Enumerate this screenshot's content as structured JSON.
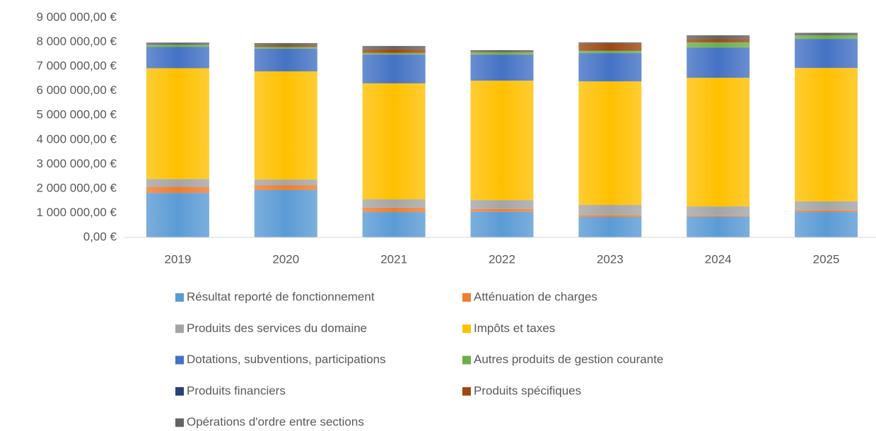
{
  "chart_data": {
    "type": "stacked_bar",
    "categories": [
      "2019",
      "2020",
      "2021",
      "2022",
      "2023",
      "2024",
      "2025"
    ],
    "series": [
      {
        "name": "Résultat reporté de fonctionnement",
        "color": "#5b9bd5",
        "values": [
          1820000,
          1940000,
          1040000,
          1050000,
          840000,
          840000,
          1040000
        ]
      },
      {
        "name": "Atténuation de charges",
        "color": "#ed7d31",
        "values": [
          250000,
          200000,
          180000,
          110000,
          80000,
          30000,
          60000
        ]
      },
      {
        "name": "Produits des services du domaine",
        "color": "#a5a5a5",
        "values": [
          320000,
          230000,
          340000,
          370000,
          410000,
          400000,
          380000
        ]
      },
      {
        "name": "Impôts et taxes",
        "color": "#ffc000",
        "values": [
          4540000,
          4430000,
          4750000,
          4890000,
          5060000,
          5270000,
          5460000
        ]
      },
      {
        "name": "Dotations, subventions, participations",
        "color": "#4472c4",
        "values": [
          870000,
          930000,
          1180000,
          1070000,
          1160000,
          1240000,
          1190000
        ]
      },
      {
        "name": "Autres produits de gestion courante",
        "color": "#70ad47",
        "values": [
          90000,
          70000,
          60000,
          90000,
          90000,
          210000,
          150000
        ]
      },
      {
        "name": "Produits financiers",
        "color": "#264478",
        "values": [
          10000,
          10000,
          10000,
          10000,
          10000,
          10000,
          10000
        ]
      },
      {
        "name": "Produits spécifiques",
        "color": "#9e480e",
        "values": [
          0,
          60000,
          140000,
          20000,
          280000,
          130000,
          0
        ]
      },
      {
        "name": "Opérations d'ordre entre sections",
        "color": "#636363",
        "values": [
          80000,
          90000,
          140000,
          60000,
          60000,
          150000,
          90000
        ]
      }
    ],
    "ylim": [
      0,
      9000000
    ],
    "yticks": [
      {
        "value": 0,
        "label": "0,00 €"
      },
      {
        "value": 1000000,
        "label": "1 000 000,00 €"
      },
      {
        "value": 2000000,
        "label": "2 000 000,00 €"
      },
      {
        "value": 3000000,
        "label": "3 000 000,00 €"
      },
      {
        "value": 4000000,
        "label": "4 000 000,00 €"
      },
      {
        "value": 5000000,
        "label": "5 000 000,00 €"
      },
      {
        "value": 6000000,
        "label": "6 000 000,00 €"
      },
      {
        "value": 7000000,
        "label": "7 000 000,00 €"
      },
      {
        "value": 8000000,
        "label": "8 000 000,00 €"
      },
      {
        "value": 9000000,
        "label": "9 000 000,00 €"
      }
    ],
    "grid": false,
    "legend": "bottom"
  }
}
